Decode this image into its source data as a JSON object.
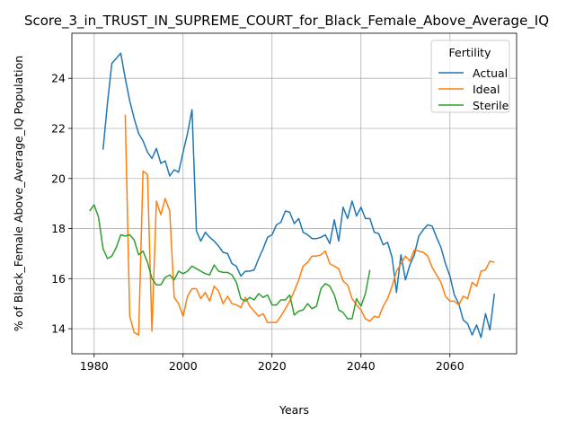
{
  "chart_data": {
    "type": "line",
    "title": "Score_3_in_TRUST_IN_SUPREME_COURT_for_Black_Female_Above_Average_IQ",
    "xlabel": "Years",
    "ylabel": "% of Black_Female Above_Average_IQ Population",
    "xlim": [
      1975,
      2075
    ],
    "ylim": [
      13.0,
      25.8
    ],
    "xticks": [
      1980,
      2000,
      2020,
      2040,
      2060
    ],
    "yticks": [
      14,
      16,
      18,
      20,
      22,
      24
    ],
    "grid": true,
    "legend": {
      "title": "Fertility",
      "position": "top-right"
    },
    "series": [
      {
        "name": "Actual",
        "color": "#1f77b4",
        "x": [
          1982,
          1983,
          1984,
          1985,
          1986,
          1987,
          1988,
          1989,
          1990,
          1991,
          1992,
          1993,
          1994,
          1995,
          1996,
          1997,
          1998,
          1999,
          2000,
          2001,
          2002,
          2003,
          2004,
          2005,
          2006,
          2007,
          2008,
          2009,
          2010,
          2011,
          2012,
          2013,
          2014,
          2015,
          2016,
          2017,
          2018,
          2019,
          2020,
          2021,
          2022,
          2023,
          2024,
          2025,
          2026,
          2027,
          2028,
          2029,
          2030,
          2031,
          2032,
          2033,
          2034,
          2035,
          2036,
          2037,
          2038,
          2039,
          2040,
          2041,
          2042,
          2043,
          2044,
          2045,
          2046,
          2047,
          2048,
          2049,
          2050,
          2051,
          2052,
          2053,
          2054,
          2055,
          2056,
          2057,
          2058,
          2059,
          2060,
          2061,
          2062,
          2063,
          2064,
          2065,
          2066,
          2067,
          2068,
          2069,
          2070
        ],
        "y": [
          21.15,
          23.0,
          24.6,
          24.8,
          25.0,
          24.0,
          23.1,
          22.4,
          21.8,
          21.5,
          21.05,
          20.8,
          21.2,
          20.6,
          20.7,
          20.1,
          20.35,
          20.25,
          21.05,
          21.8,
          22.75,
          17.9,
          17.5,
          17.85,
          17.65,
          17.5,
          17.3,
          17.05,
          17.0,
          16.6,
          16.5,
          16.1,
          16.3,
          16.3,
          16.35,
          16.8,
          17.2,
          17.65,
          17.75,
          18.15,
          18.25,
          18.7,
          18.65,
          18.2,
          18.4,
          17.85,
          17.75,
          17.6,
          17.6,
          17.65,
          17.75,
          17.4,
          18.35,
          17.5,
          18.85,
          18.4,
          19.1,
          18.5,
          18.85,
          18.4,
          18.4,
          17.85,
          17.8,
          17.35,
          17.45,
          16.85,
          15.45,
          16.95,
          15.95,
          16.55,
          16.95,
          17.7,
          17.95,
          18.15,
          18.1,
          17.65,
          17.25,
          16.6,
          16.1,
          15.35,
          15.0,
          14.35,
          14.2,
          13.75,
          14.15,
          13.65,
          14.6,
          13.95,
          15.4
        ]
      },
      {
        "name": "Ideal",
        "color": "#ff7f0e",
        "x": [
          1987,
          1988,
          1989,
          1990,
          1991,
          1992,
          1993,
          1994,
          1995,
          1996,
          1997,
          1998,
          1999,
          2000,
          2001,
          2002,
          2003,
          2004,
          2005,
          2006,
          2007,
          2008,
          2009,
          2010,
          2011,
          2012,
          2013,
          2014,
          2015,
          2016,
          2017,
          2018,
          2019,
          2020,
          2021,
          2022,
          2023,
          2024,
          2025,
          2026,
          2027,
          2028,
          2029,
          2030,
          2031,
          2032,
          2033,
          2034,
          2035,
          2036,
          2037,
          2038,
          2039,
          2040,
          2041,
          2042,
          2043,
          2044,
          2045,
          2046,
          2047,
          2048,
          2049,
          2050,
          2051,
          2052,
          2053,
          2054,
          2055,
          2056,
          2057,
          2058,
          2059,
          2060,
          2061,
          2062,
          2063,
          2064,
          2065,
          2066,
          2067,
          2068,
          2069,
          2070
        ],
        "y": [
          22.55,
          14.5,
          13.85,
          13.75,
          20.3,
          20.15,
          13.9,
          19.1,
          18.55,
          19.2,
          18.7,
          15.25,
          15.0,
          14.5,
          15.3,
          15.6,
          15.6,
          15.2,
          15.45,
          15.1,
          15.7,
          15.5,
          15.0,
          15.3,
          15.0,
          14.95,
          14.85,
          15.25,
          14.9,
          14.7,
          14.5,
          14.6,
          14.25,
          14.25,
          14.25,
          14.5,
          14.8,
          15.1,
          15.5,
          15.95,
          16.5,
          16.65,
          16.9,
          16.9,
          16.95,
          17.1,
          16.6,
          16.5,
          16.4,
          15.9,
          15.75,
          15.2,
          14.95,
          14.75,
          14.4,
          14.3,
          14.5,
          14.45,
          14.9,
          15.2,
          15.7,
          16.3,
          16.6,
          16.9,
          16.7,
          17.15,
          17.1,
          17.05,
          16.9,
          16.45,
          16.15,
          15.85,
          15.3,
          15.1,
          15.1,
          14.95,
          15.3,
          15.2,
          15.85,
          15.7,
          16.3,
          16.35,
          16.7,
          16.65
        ]
      },
      {
        "name": "Sterile",
        "color": "#2ca02c",
        "x": [
          1979,
          1980,
          1981,
          1982,
          1983,
          1984,
          1985,
          1986,
          1987,
          1988,
          1989,
          1990,
          1991,
          1992,
          1993,
          1994,
          1995,
          1996,
          1997,
          1998,
          1999,
          2000,
          2001,
          2002,
          2003,
          2004,
          2005,
          2006,
          2007,
          2008,
          2009,
          2010,
          2011,
          2012,
          2013,
          2014,
          2015,
          2016,
          2017,
          2018,
          2019,
          2020,
          2021,
          2022,
          2023,
          2024,
          2025,
          2026,
          2027,
          2028,
          2029,
          2030,
          2031,
          2032,
          2033,
          2034,
          2035,
          2036,
          2037,
          2038,
          2039,
          2040,
          2041,
          2042
        ],
        "y": [
          18.7,
          18.95,
          18.45,
          17.2,
          16.8,
          16.9,
          17.25,
          17.75,
          17.7,
          17.75,
          17.55,
          16.95,
          17.1,
          16.65,
          16.0,
          15.75,
          15.75,
          16.05,
          16.15,
          15.95,
          16.3,
          16.2,
          16.3,
          16.5,
          16.4,
          16.3,
          16.2,
          16.15,
          16.55,
          16.3,
          16.25,
          16.25,
          16.15,
          15.85,
          15.2,
          15.1,
          15.25,
          15.15,
          15.4,
          15.25,
          15.35,
          14.95,
          14.95,
          15.15,
          15.15,
          15.35,
          14.55,
          14.7,
          14.75,
          15.0,
          14.8,
          14.9,
          15.6,
          15.8,
          15.7,
          15.35,
          14.75,
          14.65,
          14.4,
          14.4,
          15.2,
          14.9,
          15.4,
          16.35
        ]
      }
    ]
  }
}
